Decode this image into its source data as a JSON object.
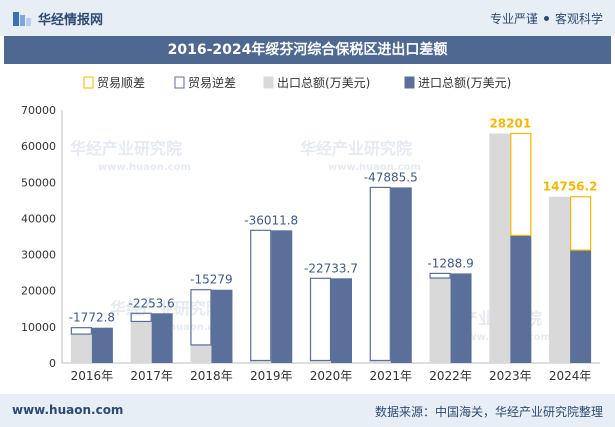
{
  "header": {
    "brand": "华经情报网",
    "tagline_left": "专业严谨",
    "tagline_right": "客观科学"
  },
  "footer": {
    "url": "www.huaon.com",
    "source": "数据来源：中国海关，华经产业研究院整理"
  },
  "watermark": {
    "cn": "华经产业研究院",
    "en": "www.huaon.com"
  },
  "colors": {
    "export": "#d9d9d9",
    "import": "#5a6f99",
    "surplus": "#f5b800",
    "deficit": "#5a6f99",
    "title_bg": "#4e6891",
    "label_positive": "#f5b800",
    "label_negative": "#3f5a87"
  },
  "chart_data": {
    "type": "bar",
    "title": "2016-2024年绥芬河综合保税区进出口差额",
    "categories": [
      "2016年",
      "2017年",
      "2018年",
      "2019年",
      "2020年",
      "2021年",
      "2022年",
      "2023年",
      "2024年"
    ],
    "series": [
      {
        "name": "出口总额(万美元)",
        "values": [
          8000,
          11500,
          5000,
          700,
          700,
          700,
          23500,
          63500,
          46000
        ]
      },
      {
        "name": "进口总额(万美元)",
        "values": [
          9772.8,
          13753.6,
          20279,
          36711.8,
          23433.7,
          48585.5,
          24788.9,
          35299,
          31243.8
        ]
      }
    ],
    "balance": [
      -1772.8,
      -2253.6,
      -15279,
      -36011.8,
      -22733.7,
      -47885.5,
      -1288.9,
      28201,
      14756.2
    ],
    "balance_labels": [
      "-1772.8",
      "-2253.6",
      "-15279",
      "-36011.8",
      "-22733.7",
      "-47885.5",
      "-1288.9",
      "28201",
      "14756.2"
    ],
    "legend": [
      "贸易顺差",
      "贸易逆差",
      "出口总额(万美元)",
      "进口总额(万美元)"
    ],
    "legend_position": "top",
    "ylim": [
      0,
      70000
    ],
    "yticks": [
      0,
      10000,
      20000,
      30000,
      40000,
      50000,
      60000,
      70000
    ],
    "grid": false
  }
}
